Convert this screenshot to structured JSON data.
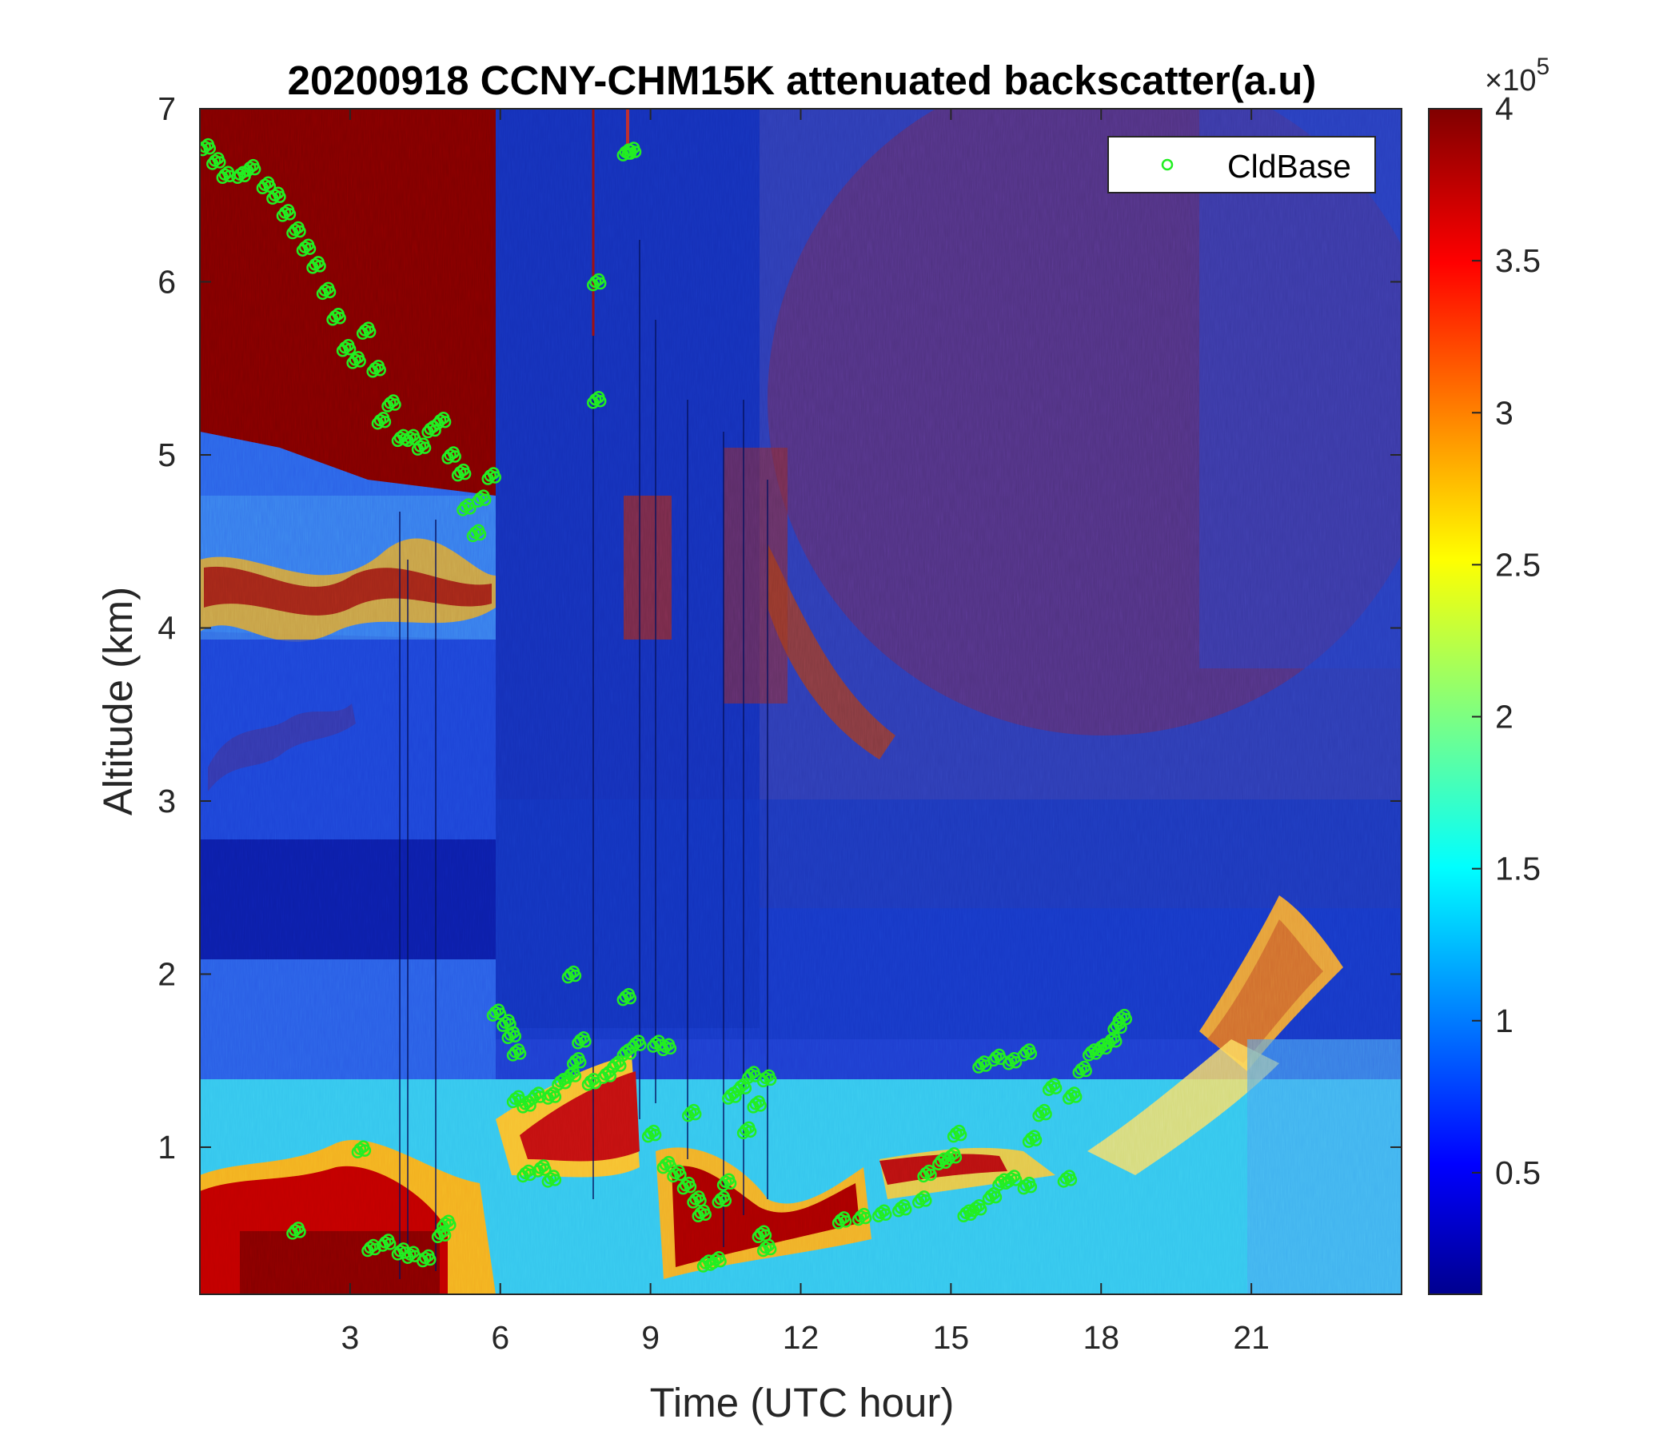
{
  "chart_data": {
    "type": "heatmap",
    "title": "20200918 CCNY-CHM15K attenuated backscatter(a.u)",
    "xlabel": "Time (UTC hour)",
    "ylabel": "Altitude (km)",
    "xlim": [
      0,
      24
    ],
    "ylim": [
      0.15,
      7
    ],
    "xticks": [
      3,
      6,
      9,
      12,
      15,
      18,
      21
    ],
    "xtick_labels": [
      "3",
      "6",
      "9",
      "12",
      "15",
      "18",
      "21"
    ],
    "yticks": [
      1,
      2,
      3,
      4,
      5,
      6,
      7
    ],
    "ytick_labels": [
      "1",
      "2",
      "3",
      "4",
      "5",
      "6",
      "7"
    ],
    "colorbar": {
      "colormap": "jet",
      "range": [
        0.1,
        4
      ],
      "ticks": [
        0.5,
        1,
        1.5,
        2,
        2.5,
        3,
        3.5,
        4
      ],
      "tick_labels": [
        "0.5",
        "1",
        "1.5",
        "2",
        "2.5",
        "3",
        "3.5",
        "4"
      ],
      "exponent_label": "×10",
      "exponent_power": "5"
    },
    "legend": {
      "position": "top-right",
      "entries": [
        "CldBase"
      ]
    },
    "colors": {
      "cldbase_marker": "#22ee22",
      "low": "#00008f",
      "high": "#800000"
    },
    "series": [
      {
        "name": "CldBase",
        "marker": "circle",
        "points": [
          [
            0.1,
            6.78
          ],
          [
            0.3,
            6.7
          ],
          [
            0.5,
            6.62
          ],
          [
            0.8,
            6.62
          ],
          [
            1.0,
            6.66
          ],
          [
            1.3,
            6.56
          ],
          [
            1.5,
            6.5
          ],
          [
            1.7,
            6.4
          ],
          [
            1.9,
            6.3
          ],
          [
            2.1,
            6.2
          ],
          [
            2.3,
            6.1
          ],
          [
            2.5,
            5.95
          ],
          [
            2.7,
            5.8
          ],
          [
            2.9,
            5.62
          ],
          [
            3.1,
            5.55
          ],
          [
            3.3,
            5.72
          ],
          [
            3.5,
            5.5
          ],
          [
            3.6,
            5.2
          ],
          [
            3.8,
            5.3
          ],
          [
            4.0,
            5.1
          ],
          [
            4.2,
            5.1
          ],
          [
            4.4,
            5.05
          ],
          [
            4.6,
            5.15
          ],
          [
            4.8,
            5.2
          ],
          [
            5.0,
            5.0
          ],
          [
            5.2,
            4.9
          ],
          [
            5.3,
            4.7
          ],
          [
            5.5,
            4.55
          ],
          [
            5.6,
            4.75
          ],
          [
            5.8,
            4.88
          ],
          [
            8.5,
            6.75
          ],
          [
            8.6,
            6.76
          ],
          [
            7.9,
            6.0
          ],
          [
            7.9,
            5.32
          ],
          [
            1.9,
            0.52
          ],
          [
            3.2,
            0.99
          ],
          [
            3.4,
            0.42
          ],
          [
            3.7,
            0.45
          ],
          [
            4.0,
            0.4
          ],
          [
            4.2,
            0.38
          ],
          [
            4.5,
            0.36
          ],
          [
            4.8,
            0.5
          ],
          [
            4.9,
            0.56
          ],
          [
            5.9,
            1.78
          ],
          [
            6.1,
            1.72
          ],
          [
            6.2,
            1.65
          ],
          [
            6.3,
            1.55
          ],
          [
            6.3,
            1.28
          ],
          [
            6.5,
            1.25
          ],
          [
            6.7,
            1.3
          ],
          [
            6.5,
            0.85
          ],
          [
            6.8,
            0.88
          ],
          [
            7.0,
            0.82
          ],
          [
            7.0,
            1.3
          ],
          [
            7.2,
            1.38
          ],
          [
            7.4,
            1.42
          ],
          [
            7.5,
            1.5
          ],
          [
            7.6,
            1.62
          ],
          [
            7.4,
            2.0
          ],
          [
            7.8,
            1.38
          ],
          [
            8.1,
            1.42
          ],
          [
            8.3,
            1.48
          ],
          [
            8.5,
            1.55
          ],
          [
            8.5,
            1.87
          ],
          [
            8.7,
            1.6
          ],
          [
            9.0,
            1.08
          ],
          [
            9.1,
            1.6
          ],
          [
            9.3,
            1.58
          ],
          [
            9.3,
            0.9
          ],
          [
            9.5,
            0.85
          ],
          [
            9.7,
            0.78
          ],
          [
            9.8,
            1.2
          ],
          [
            9.9,
            0.7
          ],
          [
            10.0,
            0.62
          ],
          [
            10.1,
            0.33
          ],
          [
            10.3,
            0.35
          ],
          [
            10.4,
            0.7
          ],
          [
            10.5,
            0.8
          ],
          [
            10.6,
            1.3
          ],
          [
            10.8,
            1.35
          ],
          [
            11.0,
            1.42
          ],
          [
            11.1,
            1.25
          ],
          [
            11.3,
            1.4
          ],
          [
            11.2,
            0.5
          ],
          [
            11.3,
            0.42
          ],
          [
            10.9,
            1.1
          ],
          [
            12.8,
            0.58
          ],
          [
            13.2,
            0.6
          ],
          [
            13.6,
            0.62
          ],
          [
            14.0,
            0.65
          ],
          [
            14.4,
            0.7
          ],
          [
            14.5,
            0.85
          ],
          [
            14.8,
            0.92
          ],
          [
            15.0,
            0.95
          ],
          [
            15.1,
            1.08
          ],
          [
            15.3,
            0.62
          ],
          [
            15.5,
            0.65
          ],
          [
            15.8,
            0.72
          ],
          [
            16.0,
            0.8
          ],
          [
            16.2,
            0.82
          ],
          [
            16.5,
            0.78
          ],
          [
            16.6,
            1.05
          ],
          [
            15.6,
            1.48
          ],
          [
            15.9,
            1.52
          ],
          [
            16.2,
            1.5
          ],
          [
            16.5,
            1.55
          ],
          [
            16.8,
            1.2
          ],
          [
            17.0,
            1.35
          ],
          [
            17.3,
            0.82
          ],
          [
            17.4,
            1.3
          ],
          [
            17.6,
            1.45
          ],
          [
            17.8,
            1.55
          ],
          [
            18.0,
            1.58
          ],
          [
            18.2,
            1.62
          ],
          [
            18.3,
            1.7
          ],
          [
            18.4,
            1.75
          ]
        ]
      }
    ]
  }
}
